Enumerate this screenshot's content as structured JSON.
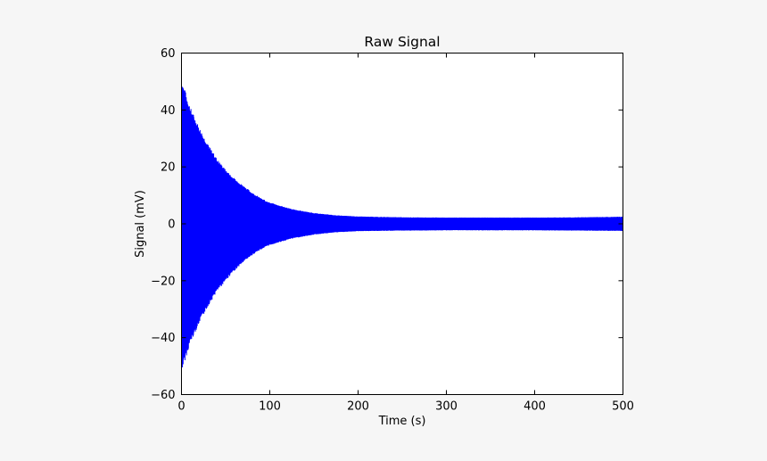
{
  "chart_data": {
    "type": "line",
    "title": "Raw Signal",
    "xlabel": "Time (s)",
    "ylabel": "Signal (mV)",
    "xlim": [
      0,
      500
    ],
    "ylim": [
      -60,
      60
    ],
    "xticks": [
      0,
      100,
      200,
      300,
      400,
      500
    ],
    "yticks": [
      -60,
      -40,
      -20,
      0,
      20,
      40,
      60
    ],
    "xtick_labels": [
      "0",
      "100",
      "200",
      "300",
      "400",
      "500"
    ],
    "ytick_labels": [
      "−60",
      "−40",
      "−20",
      "0",
      "20",
      "40",
      "60"
    ],
    "grid": false,
    "series": [
      {
        "color": "#0000ff",
        "description_shape": "oscillating signal with exponentially decaying envelope",
        "x": [
          0,
          10,
          20,
          30,
          40,
          50,
          60,
          70,
          80,
          90,
          100,
          125,
          150,
          175,
          200,
          250,
          300,
          350,
          400,
          450,
          500
        ],
        "upper": [
          51,
          41,
          34,
          28,
          23,
          19,
          16,
          13.5,
          11,
          9,
          7.5,
          5.2,
          3.8,
          3.0,
          2.6,
          2.3,
          2.2,
          2.2,
          2.2,
          2.3,
          2.5
        ],
        "lower": [
          -52,
          -42,
          -35,
          -29,
          -24,
          -20,
          -16.5,
          -13.5,
          -11,
          -9,
          -7.5,
          -5.2,
          -3.8,
          -3.0,
          -2.6,
          -2.4,
          -2.3,
          -2.3,
          -2.3,
          -2.4,
          -2.5
        ]
      }
    ]
  }
}
